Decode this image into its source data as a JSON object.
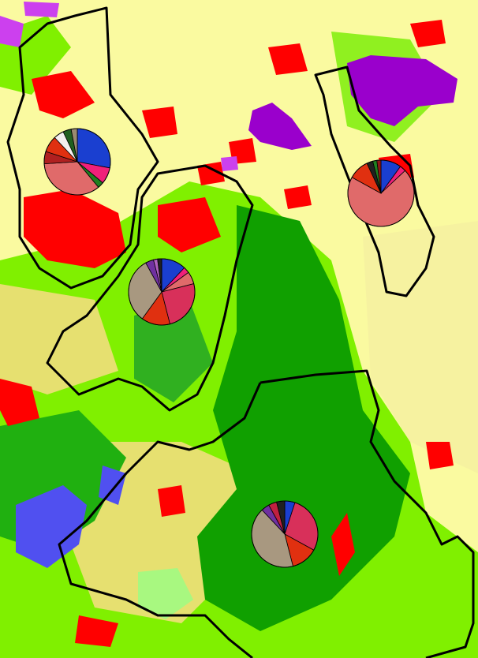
{
  "chart_data": [
    {
      "type": "pie",
      "values": [
        28,
        8,
        3,
        35,
        6,
        8,
        5,
        4,
        3
      ],
      "colors": [
        "#1a3fd0",
        "#f0207a",
        "#208020",
        "#e06a6a",
        "#b02020",
        "#e03010",
        "#f4f0f0",
        "#206020",
        "#9a8a70"
      ]
    },
    {
      "type": "pie",
      "values": [
        12,
        3,
        6,
        25,
        14,
        32,
        4,
        2,
        2
      ],
      "colors": [
        "#1a3fd0",
        "#f0207a",
        "#e06a6a",
        "#d8305a",
        "#e03010",
        "#a89880",
        "#7030a0",
        "#b060c0",
        "#202020"
      ]
    },
    {
      "type": "pie",
      "values": [
        10,
        3,
        70,
        10,
        3,
        2,
        2
      ],
      "colors": [
        "#1a3fd0",
        "#f0207a",
        "#e06a6a",
        "#e03010",
        "#202020",
        "#208020",
        "#901818"
      ]
    },
    {
      "type": "pie",
      "values": [
        5,
        28,
        13,
        42,
        4,
        4,
        4
      ],
      "colors": [
        "#1a3fd0",
        "#d8305a",
        "#e03010",
        "#a89880",
        "#7030a0",
        "#c02040",
        "#202020"
      ]
    }
  ]
}
